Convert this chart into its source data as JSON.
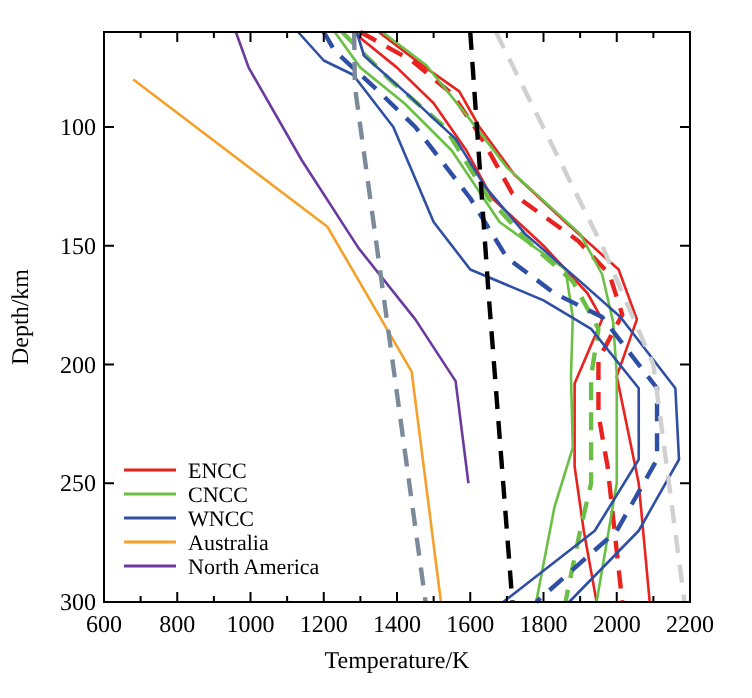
{
  "chart_data": {
    "type": "line",
    "xlabel": "Temperature/K",
    "ylabel": "Depth/km",
    "xlim": [
      600,
      2200
    ],
    "ylim": [
      300,
      60
    ],
    "xticks": [
      600,
      {
        "value": 700,
        "label": null
      },
      800,
      {
        "value": 900,
        "label": null
      },
      1000,
      {
        "value": 1100,
        "label": null
      },
      1200,
      {
        "value": 1300,
        "label": null
      },
      1400,
      {
        "value": 1500,
        "label": null
      },
      1600,
      {
        "value": 1700,
        "label": null
      },
      1800,
      {
        "value": 1900,
        "label": null
      },
      2000,
      {
        "value": 2100,
        "label": null
      },
      2200
    ],
    "yticks": [
      100,
      150,
      200,
      250,
      300
    ],
    "legend": "bottom left",
    "grid": false,
    "series": [
      {
        "name": "ENCC",
        "color": "#e8231f",
        "line_style": "solid",
        "x": [
          1350,
          1478,
          1570,
          1625,
          1720,
          1860,
          2005,
          2055,
          2000,
          2060,
          2090
        ],
        "values": [
          60,
          75,
          85,
          100,
          120,
          140,
          160,
          181,
          205,
          250,
          300
        ]
      },
      {
        "color": "#e8231f",
        "line_style": "solid",
        "x": [
          1280,
          1400,
          1500,
          1590,
          1660,
          1800,
          1920,
          1960,
          1885,
          1885,
          1910,
          1945
        ],
        "values": [
          60,
          75,
          90,
          110,
          130,
          150,
          170,
          181,
          208,
          243,
          270,
          300
        ]
      },
      {
        "color": "#e8231f",
        "line_style": "dashed",
        "x": [
          1300,
          1440,
          1550,
          1625,
          1715,
          1895,
          1980,
          2015,
          1950,
          1950,
          1975,
          2015
        ],
        "values": [
          60,
          72,
          86,
          103,
          128,
          148,
          162,
          179,
          198,
          221,
          243,
          300
        ]
      },
      {
        "name": "CNCC",
        "color": "#6bbf45",
        "line_style": "solid",
        "x": [
          1360,
          1480,
          1590,
          1700,
          1900,
          1960,
          1990,
          2000,
          2000,
          1945
        ],
        "values": [
          60,
          74,
          95,
          117,
          145,
          162,
          182,
          204,
          250,
          300
        ]
      },
      {
        "color": "#6bbf45",
        "line_style": "solid",
        "x": [
          1230,
          1300,
          1420,
          1550,
          1680,
          1860,
          1880,
          1875,
          1880,
          1830,
          1780
        ],
        "values": [
          60,
          75,
          90,
          110,
          140,
          160,
          180,
          205,
          235,
          260,
          300
        ]
      },
      {
        "color": "#6bbf45",
        "line_style": "dashed",
        "x": [
          1250,
          1380,
          1530,
          1650,
          1770,
          1880,
          1950,
          1930,
          1930,
          1900,
          1860
        ],
        "values": [
          60,
          80,
          100,
          130,
          150,
          165,
          185,
          205,
          250,
          270,
          300
        ]
      },
      {
        "name": "WNCC",
        "color": "#2e4fa3",
        "line_style": "solid",
        "x": [
          1290,
          1310,
          1420,
          1560,
          1640,
          1750,
          1900,
          2010,
          2160,
          2170,
          2060,
          1870
        ],
        "values": [
          60,
          70,
          85,
          105,
          125,
          145,
          165,
          180,
          210,
          240,
          270,
          300
        ]
      },
      {
        "color": "#2e4fa3",
        "line_style": "solid",
        "x": [
          1130,
          1200,
          1280,
          1390,
          1500,
          1600,
          1800,
          1930,
          2060,
          2060,
          1940,
          1690
        ],
        "values": [
          60,
          72,
          78,
          100,
          140,
          160,
          173,
          185,
          210,
          240,
          270,
          300
        ]
      },
      {
        "color": "#2e4fa3",
        "line_style": "dashed",
        "x": [
          1200,
          1230,
          1350,
          1450,
          1600,
          1700,
          1830,
          1960,
          2110,
          2110,
          2000,
          1780
        ],
        "values": [
          60,
          68,
          85,
          100,
          130,
          155,
          170,
          180,
          210,
          240,
          270,
          300
        ]
      },
      {
        "name": "Australia",
        "color": "#f5a02a",
        "line_style": "solid",
        "x": [
          680,
          1210,
          1440,
          1520
        ],
        "values": [
          80,
          142,
          203,
          300
        ]
      },
      {
        "name": "North America",
        "color": "#6a3a9e",
        "line_style": "solid",
        "x": [
          960,
          995,
          1140,
          1295,
          1450,
          1560,
          1595
        ],
        "values": [
          60,
          75,
          114,
          151,
          181,
          207,
          250
        ]
      },
      {
        "color": "#7a8a9a",
        "line_style": "dashed",
        "x": [
          1283,
          1285,
          1478
        ],
        "values": [
          60,
          83,
          300
        ]
      },
      {
        "color": "#000000",
        "line_style": "dashed",
        "x": [
          1600,
          1650,
          1715
        ],
        "values": [
          60,
          170,
          300
        ]
      },
      {
        "color": "#d0d0d0",
        "line_style": "dashed",
        "x": [
          1670,
          1960,
          2100,
          2185
        ],
        "values": [
          60,
          150,
          200,
          300
        ]
      }
    ]
  }
}
